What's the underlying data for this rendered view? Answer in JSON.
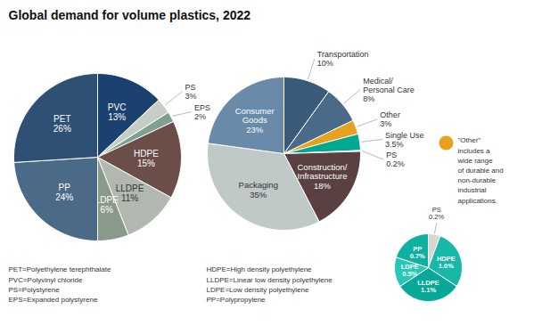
{
  "chart_data": [
    {
      "type": "pie",
      "title": "Global demand for volume plastics, 2022",
      "categories": [
        "PVC",
        "PS",
        "EPS",
        "HDPE",
        "LLDPE",
        "LDPE",
        "PP",
        "PET"
      ],
      "values": [
        13,
        3,
        2,
        15,
        11,
        6,
        24,
        26
      ],
      "value_labels": [
        "13%",
        "3%",
        "2%",
        "15%",
        "11%",
        "6%",
        "24%",
        "26%"
      ],
      "colors": [
        "#1b4170",
        "#c5cdc5",
        "#7fa090",
        "#6b4e48",
        "#b0b8b0",
        "#8a9a8a",
        "#4a6a88",
        "#2e5075"
      ],
      "data_labels": true,
      "annotations": [
        {
          "text": "PET=Polyethylene terephthalate\nPVC=Polyvinyl chloride\nPS=Polystyrene\nEPS=Expanded polystyrene"
        },
        {
          "text": "HDPE=High density polyethylene\nLLDPE=Linear low density polyethylene\nLDPE=Low density polyethylene\nPP=Polypropylene"
        }
      ]
    },
    {
      "type": "pie",
      "categories": [
        "Transportation",
        "Medical/\nPersonal Care",
        "Other",
        "Single Use",
        "PS",
        "Construction/\nInfrastructure",
        "Packaging",
        "Consumer\nGoods"
      ],
      "values": [
        10,
        8,
        3,
        3.5,
        0.2,
        18,
        35,
        23
      ],
      "value_labels": [
        "10%",
        "8%",
        "3%",
        "3.5%",
        "0.2%",
        "18%",
        "35%",
        "23%"
      ],
      "colors": [
        "#3a5a7a",
        "#4a6a8a",
        "#e8a020",
        "#00a890",
        "#9aaa9a",
        "#5a4040",
        "#c0c8c8",
        "#6a8aaa"
      ],
      "data_labels": true,
      "annotations": [
        {
          "text": "\"Other\"\nincludes a\nwide range\nof durable and\nnon-durable\nindustrial\napplications.",
          "color": "#e8a020"
        }
      ]
    },
    {
      "type": "pie",
      "categories": [
        "PS",
        "HDPE",
        "LLDPE",
        "LDPE",
        "PP"
      ],
      "values": [
        0.2,
        1.0,
        1.1,
        0.5,
        0.7
      ],
      "value_labels": [
        "0.2%",
        "1.0%",
        "1.1%",
        "0.5%",
        "0.7%"
      ],
      "colors": [
        "#d8d8d0",
        "#18b8a8",
        "#08a898",
        "#28c8b8",
        "#10b0a0"
      ],
      "data_labels": true
    }
  ]
}
